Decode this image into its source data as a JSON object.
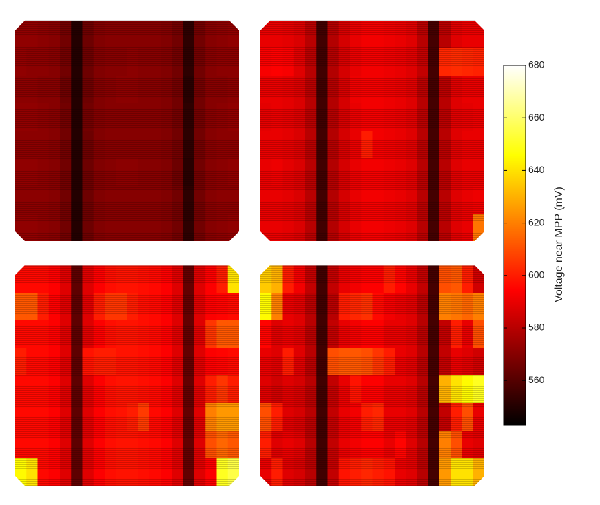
{
  "chart_data": {
    "type": "heatmap",
    "colorbar_label": "Voltage near MPP (mV)",
    "zlim": [
      543,
      680
    ],
    "zticks": [
      560,
      580,
      600,
      620,
      640,
      660,
      680
    ],
    "colormap": [
      "#000000",
      "#550000",
      "#aa0000",
      "#ff0000",
      "#ff5500",
      "#ffaa00",
      "#ffff00",
      "#ffff80",
      "#ffffff"
    ],
    "panels": [
      {
        "z": [
          [
            572,
            572,
            571,
            570,
            566,
            550,
            565,
            569,
            570,
            570,
            570,
            570,
            570,
            569,
            566,
            552,
            566,
            570,
            571,
            572
          ],
          [
            572,
            571,
            571,
            570,
            566,
            550,
            565,
            569,
            570,
            570,
            571,
            570,
            570,
            569,
            566,
            552,
            566,
            570,
            571,
            571
          ],
          [
            571,
            571,
            570,
            570,
            565,
            550,
            565,
            569,
            570,
            571,
            571,
            570,
            570,
            569,
            566,
            551,
            566,
            570,
            570,
            571
          ],
          [
            572,
            572,
            571,
            570,
            566,
            550,
            566,
            569,
            570,
            570,
            570,
            570,
            570,
            569,
            566,
            552,
            566,
            570,
            571,
            572
          ],
          [
            571,
            571,
            571,
            570,
            566,
            550,
            565,
            569,
            570,
            570,
            570,
            570,
            570,
            569,
            566,
            552,
            566,
            570,
            571,
            571
          ],
          [
            572,
            572,
            571,
            570,
            566,
            550,
            565,
            569,
            570,
            571,
            571,
            570,
            570,
            569,
            565,
            551,
            566,
            570,
            571,
            572
          ],
          [
            571,
            571,
            571,
            570,
            566,
            550,
            565,
            569,
            570,
            570,
            570,
            570,
            570,
            569,
            566,
            552,
            566,
            570,
            571,
            571
          ],
          [
            572,
            572,
            571,
            570,
            566,
            550,
            565,
            569,
            570,
            570,
            570,
            570,
            570,
            569,
            566,
            552,
            566,
            570,
            571,
            572
          ]
        ]
      },
      {
        "z": [
          [
            590,
            590,
            589,
            587,
            580,
            556,
            579,
            586,
            590,
            592,
            592,
            591,
            590,
            588,
            580,
            557,
            580,
            588,
            590,
            590
          ],
          [
            593,
            594,
            593,
            588,
            580,
            556,
            579,
            586,
            590,
            592,
            592,
            591,
            590,
            588,
            582,
            557,
            602,
            603,
            602,
            601
          ],
          [
            590,
            590,
            589,
            587,
            580,
            556,
            579,
            586,
            591,
            592,
            592,
            591,
            590,
            588,
            580,
            557,
            580,
            588,
            590,
            590
          ],
          [
            589,
            590,
            589,
            587,
            580,
            556,
            579,
            586,
            590,
            592,
            592,
            591,
            590,
            588,
            580,
            557,
            580,
            588,
            589,
            590
          ],
          [
            590,
            590,
            589,
            587,
            580,
            556,
            579,
            586,
            590,
            600,
            592,
            591,
            590,
            588,
            580,
            557,
            580,
            588,
            590,
            590
          ],
          [
            590,
            591,
            589,
            587,
            580,
            556,
            579,
            586,
            590,
            592,
            592,
            591,
            590,
            588,
            580,
            557,
            580,
            588,
            590,
            590
          ],
          [
            590,
            590,
            589,
            587,
            580,
            556,
            579,
            586,
            590,
            592,
            592,
            591,
            590,
            588,
            580,
            557,
            580,
            588,
            590,
            591
          ],
          [
            590,
            590,
            589,
            587,
            580,
            556,
            579,
            586,
            590,
            592,
            592,
            591,
            590,
            588,
            580,
            557,
            580,
            588,
            590,
            618
          ]
        ]
      },
      {
        "z": [
          [
            596,
            596,
            596,
            594,
            588,
            562,
            588,
            594,
            597,
            598,
            598,
            597,
            596,
            594,
            588,
            563,
            588,
            594,
            600,
            640
          ],
          [
            612,
            612,
            600,
            594,
            588,
            562,
            588,
            600,
            605,
            605,
            600,
            597,
            596,
            594,
            588,
            563,
            588,
            594,
            595,
            596
          ],
          [
            596,
            596,
            596,
            594,
            588,
            562,
            588,
            594,
            597,
            598,
            598,
            597,
            596,
            594,
            588,
            563,
            588,
            605,
            612,
            612
          ],
          [
            600,
            596,
            596,
            594,
            588,
            562,
            598,
            600,
            600,
            598,
            598,
            597,
            596,
            594,
            588,
            563,
            588,
            594,
            595,
            596
          ],
          [
            596,
            596,
            596,
            594,
            588,
            562,
            588,
            594,
            597,
            598,
            598,
            597,
            596,
            594,
            588,
            563,
            588,
            600,
            605,
            600
          ],
          [
            596,
            596,
            596,
            594,
            588,
            562,
            588,
            594,
            597,
            598,
            600,
            606,
            596,
            594,
            588,
            563,
            588,
            620,
            625,
            625
          ],
          [
            596,
            596,
            596,
            594,
            588,
            562,
            588,
            594,
            597,
            598,
            598,
            597,
            596,
            594,
            588,
            563,
            588,
            610,
            615,
            612
          ],
          [
            645,
            640,
            596,
            594,
            588,
            562,
            588,
            594,
            597,
            598,
            598,
            597,
            596,
            594,
            588,
            563,
            588,
            594,
            650,
            655
          ]
        ]
      },
      {
        "z": [
          [
            635,
            630,
            600,
            592,
            582,
            556,
            582,
            590,
            592,
            594,
            594,
            600,
            595,
            590,
            582,
            557,
            610,
            612,
            600,
            585
          ],
          [
            645,
            620,
            590,
            588,
            580,
            556,
            580,
            600,
            602,
            604,
            596,
            592,
            590,
            588,
            580,
            557,
            620,
            618,
            615,
            620
          ],
          [
            595,
            588,
            590,
            588,
            580,
            556,
            582,
            590,
            592,
            594,
            594,
            590,
            590,
            588,
            580,
            557,
            582,
            600,
            590,
            610
          ],
          [
            590,
            588,
            600,
            588,
            580,
            556,
            610,
            612,
            612,
            610,
            605,
            600,
            590,
            588,
            580,
            557,
            582,
            590,
            588,
            585
          ],
          [
            588,
            585,
            588,
            586,
            580,
            556,
            582,
            590,
            598,
            594,
            594,
            590,
            590,
            588,
            580,
            557,
            630,
            640,
            645,
            650
          ],
          [
            610,
            600,
            588,
            586,
            580,
            556,
            582,
            590,
            592,
            600,
            602,
            590,
            590,
            588,
            580,
            557,
            582,
            600,
            610,
            590
          ],
          [
            600,
            588,
            590,
            588,
            580,
            556,
            582,
            590,
            592,
            594,
            594,
            590,
            595,
            588,
            580,
            557,
            620,
            610,
            590,
            588
          ],
          [
            590,
            600,
            588,
            586,
            580,
            556,
            582,
            598,
            600,
            602,
            600,
            598,
            590,
            588,
            580,
            557,
            625,
            640,
            640,
            630
          ]
        ]
      }
    ]
  }
}
